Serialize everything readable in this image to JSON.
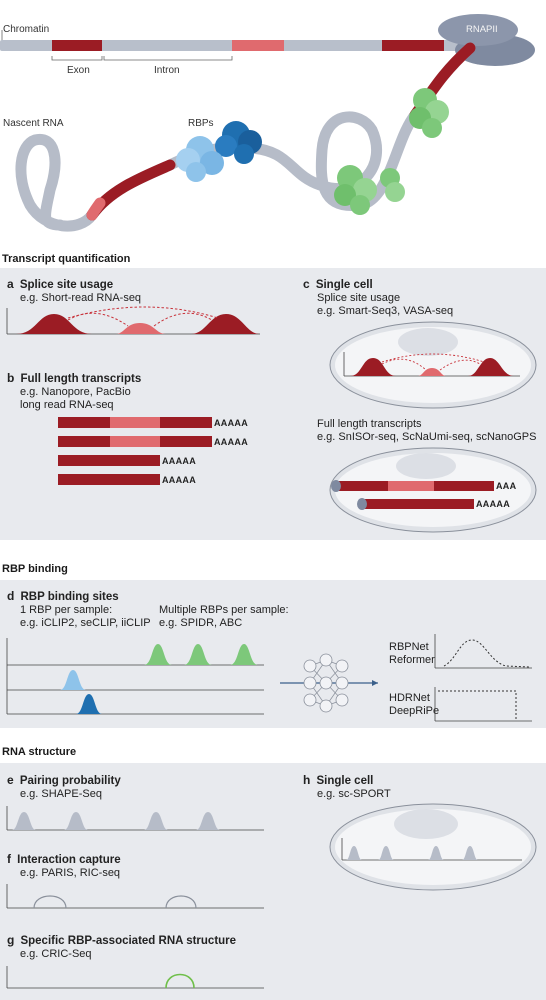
{
  "top": {
    "chromatin_label": "Chromatin",
    "exon_label": "Exon",
    "intron_label": "Intron",
    "rnapii_label": "RNAPII",
    "nascent_label": "Nascent RNA",
    "rbps_label": "RBPs"
  },
  "sections": {
    "transcript": "Transcript quantification",
    "rbp": "RBP binding",
    "structure": "RNA structure"
  },
  "panel_a": {
    "letter": "a",
    "title": "Splice site usage",
    "sub": "e.g. Short-read RNA-seq"
  },
  "panel_b": {
    "letter": "b",
    "title": "Full length transcripts",
    "sub1": "e.g. Nanopore, PacBio",
    "sub2": "long read RNA-seq",
    "poly": "AAAAA"
  },
  "panel_c": {
    "letter": "c",
    "title": "Single cell",
    "sub1": "Splice site usage",
    "sub2": "e.g. Smart-Seq3, VASA-seq",
    "sub3": "Full length transcripts",
    "sub4": "e.g. SnISOr-seq, ScNaUmi-seq, scNanoGPS",
    "poly_short": "AAA",
    "poly": "AAAAA"
  },
  "panel_d": {
    "letter": "d",
    "title": "RBP binding sites",
    "single1": "1 RBP per sample:",
    "single2": "e.g. iCLIP2, seCLIP, iiCLIP",
    "multi1": "Multiple RBPs per sample:",
    "multi2": "e.g. SPIDR, ABC",
    "model1a": "RBPNet",
    "model1b": "Reformer",
    "model2a": "HDRNet",
    "model2b": "DeepRiPe"
  },
  "panel_e": {
    "letter": "e",
    "title": "Pairing probability",
    "sub": "e.g. SHAPE-Seq"
  },
  "panel_f": {
    "letter": "f",
    "title": "Interaction capture",
    "sub": "e.g. PARIS, RIC-seq"
  },
  "panel_g": {
    "letter": "g",
    "title": "Specific RBP-associated RNA structure",
    "sub": "e.g. CRIC-Seq"
  },
  "panel_h": {
    "letter": "h",
    "title": "Single cell",
    "sub": "e.g. sc-SPORT"
  },
  "colors": {
    "exon": "#9b1c24",
    "exon_light": "#e06a6e",
    "rna": "#b6bcc8",
    "panel": "#e8eaee",
    "green": "#7dc87a",
    "blue_light": "#8ec3ea",
    "blue_dark": "#1f6fb0"
  }
}
